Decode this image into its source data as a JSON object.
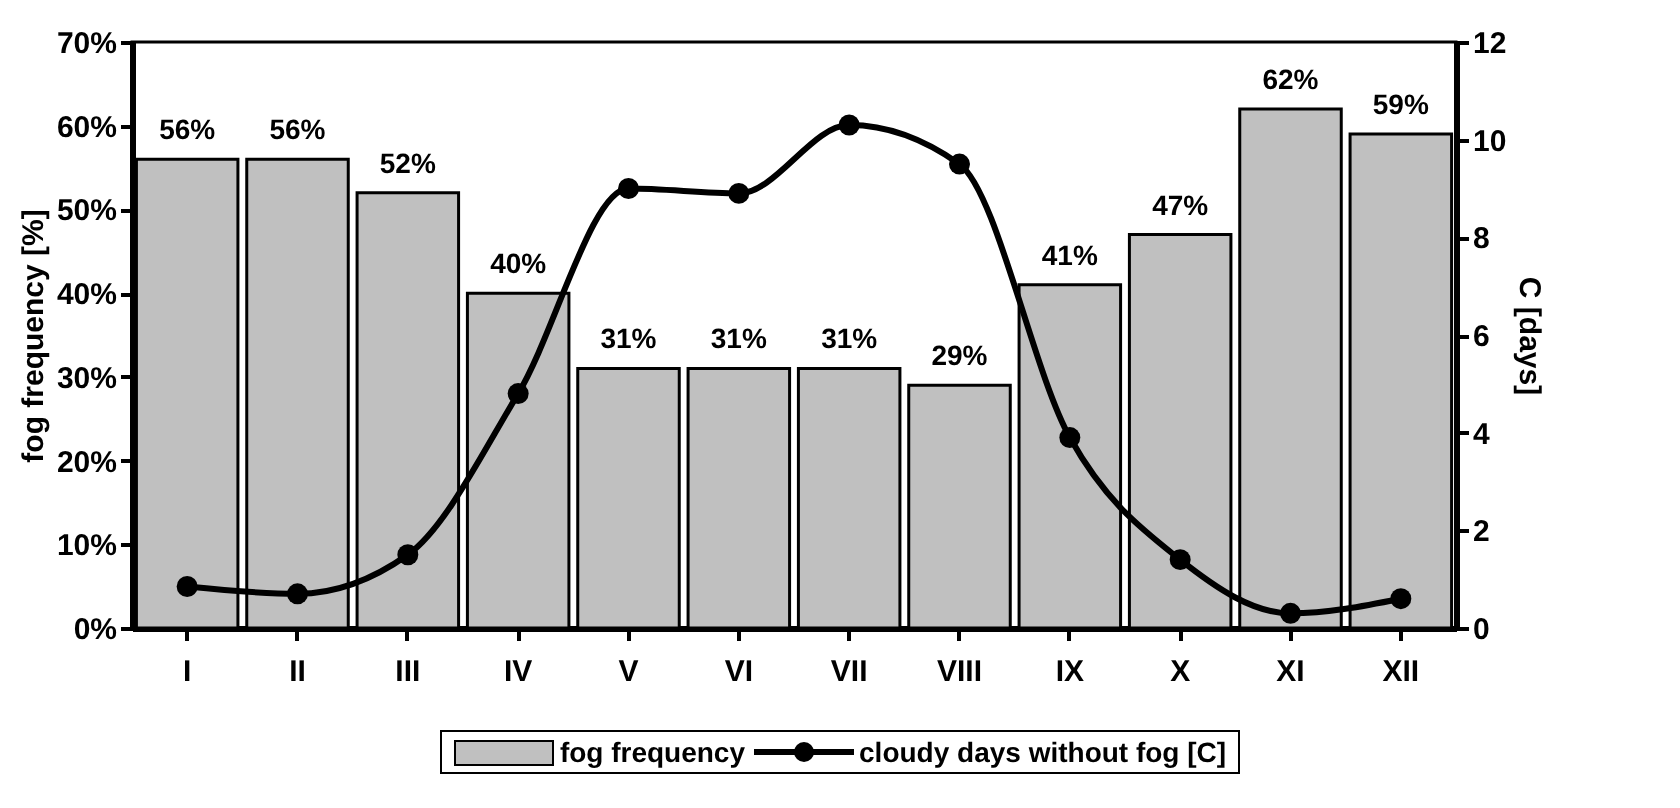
{
  "chart_data": {
    "type": "bar",
    "ylabel": "fog frequency [%]",
    "y2label": "C [days]",
    "categories": [
      "I",
      "II",
      "III",
      "IV",
      "V",
      "VI",
      "VII",
      "VIII",
      "IX",
      "X",
      "XI",
      "XII"
    ],
    "series": [
      {
        "name": "fog frequency",
        "color": "#c0c0c0",
        "values": [
          56,
          56,
          52,
          40,
          31,
          31,
          31,
          29,
          41,
          47,
          62,
          59
        ],
        "value_labels": [
          "56%",
          "56%",
          "52%",
          "40%",
          "31%",
          "31%",
          "31%",
          "29%",
          "41%",
          "47%",
          "62%",
          "59%"
        ]
      },
      {
        "name": "cloudy days without fog [C]",
        "type": "line",
        "axis": "y2",
        "color": "#000000",
        "values": [
          0.85,
          0.7,
          1.5,
          4.8,
          9.0,
          8.9,
          10.3,
          9.5,
          3.9,
          1.4,
          0.3,
          0.6
        ]
      }
    ],
    "ylim": [
      0,
      70
    ],
    "yticks": [
      {
        "value": 0,
        "label": "0%"
      },
      {
        "value": 10,
        "label": "10%"
      },
      {
        "value": 20,
        "label": "20%"
      },
      {
        "value": 30,
        "label": "30%"
      },
      {
        "value": 40,
        "label": "40%"
      },
      {
        "value": 50,
        "label": "50%"
      },
      {
        "value": 60,
        "label": "60%"
      },
      {
        "value": 70,
        "label": "70%"
      }
    ],
    "y2lim": [
      0,
      12
    ],
    "y2ticks": [
      0,
      2,
      4,
      6,
      8,
      10,
      12
    ],
    "legend": "bottom",
    "marker": "circle",
    "line_style": "solid",
    "grid": false
  }
}
